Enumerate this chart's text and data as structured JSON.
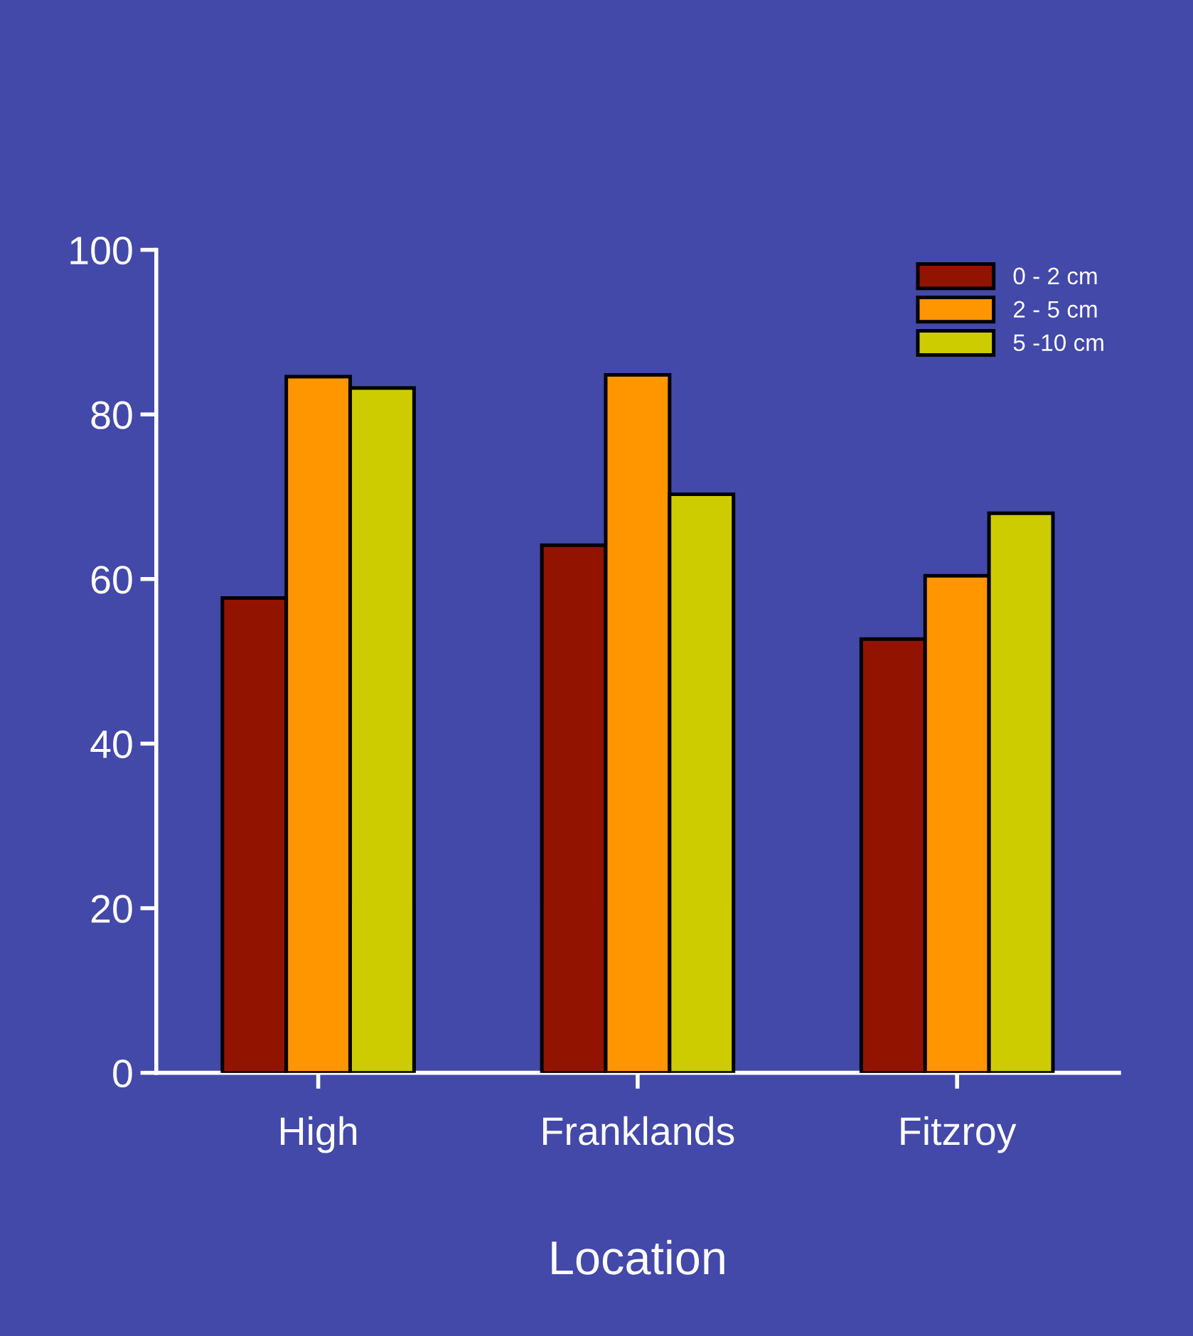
{
  "chart_data": {
    "type": "bar",
    "xlabel": "Location",
    "categories": [
      "High",
      "Franklands",
      "Fitzroy"
    ],
    "series": [
      {
        "name": "0 - 2 cm",
        "color": "#921400",
        "values": [
          57.7,
          64.1,
          52.7
        ]
      },
      {
        "name": "2 - 5 cm",
        "color": "#ff9600",
        "values": [
          84.6,
          84.8,
          60.4
        ]
      },
      {
        "name": "5 -10 cm",
        "color": "#cccc00",
        "values": [
          83.2,
          70.3,
          68.0
        ]
      }
    ],
    "ylim": [
      0,
      100
    ],
    "yticks": [
      0,
      20,
      40,
      60,
      80,
      100
    ],
    "grid": false,
    "legend": "top right"
  }
}
